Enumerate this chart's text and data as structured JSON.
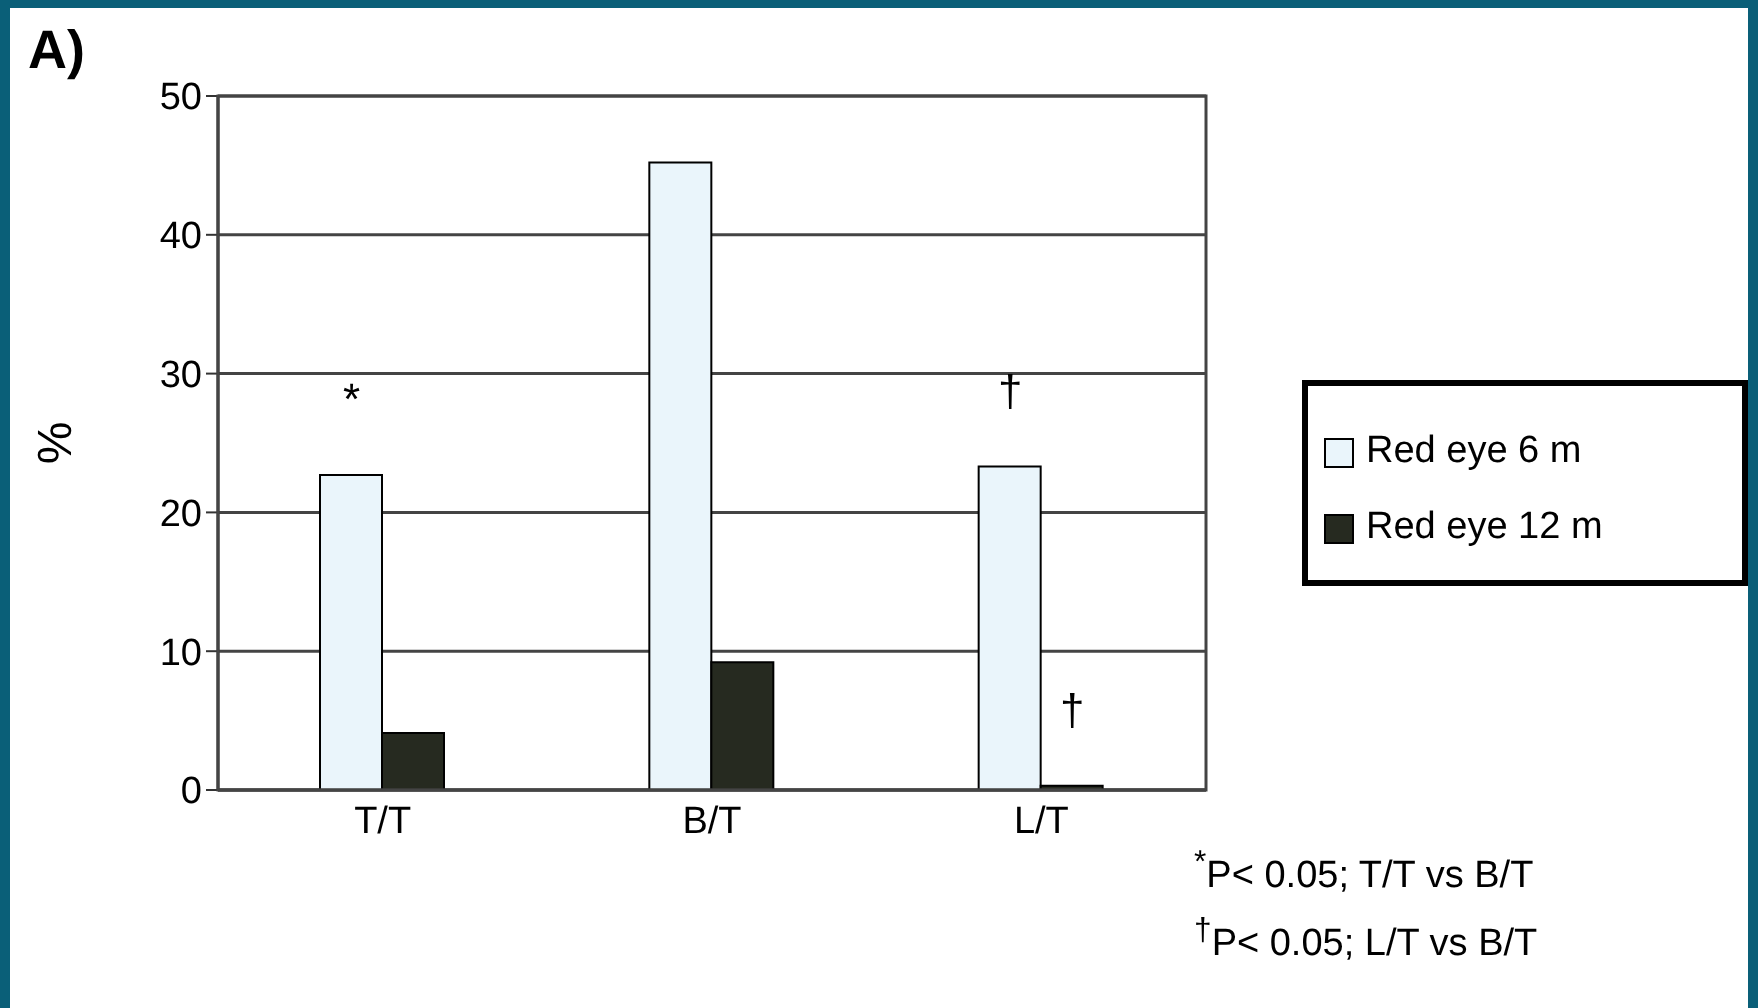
{
  "chart_data": {
    "type": "bar",
    "title": "A)",
    "ylabel": "%",
    "categories": [
      "T/T",
      "B/T",
      "L/T"
    ],
    "series": [
      {
        "name": "Red eye 6 m",
        "color": "#eaf5fb",
        "values": [
          22.7,
          45.2,
          23.3
        ]
      },
      {
        "name": "Red eye 12 m",
        "color": "#262a20",
        "values": [
          4.1,
          9.2,
          0.3
        ]
      }
    ],
    "ylim": [
      0,
      50
    ],
    "yticks": [
      0,
      10,
      20,
      30,
      40,
      50
    ],
    "grid": "y",
    "legend": "right",
    "annotations": [
      {
        "text": "*",
        "x": "T/T",
        "y": 22.7
      },
      {
        "text": "†",
        "x": "L/T",
        "y": 23.3
      },
      {
        "text": "†",
        "x": "L/T",
        "y": 0.3
      },
      "$^{*}$P< 0.05; T/T vs B/T",
      "$^{†}$P< 0.05; L/T vs B/T"
    ]
  }
}
